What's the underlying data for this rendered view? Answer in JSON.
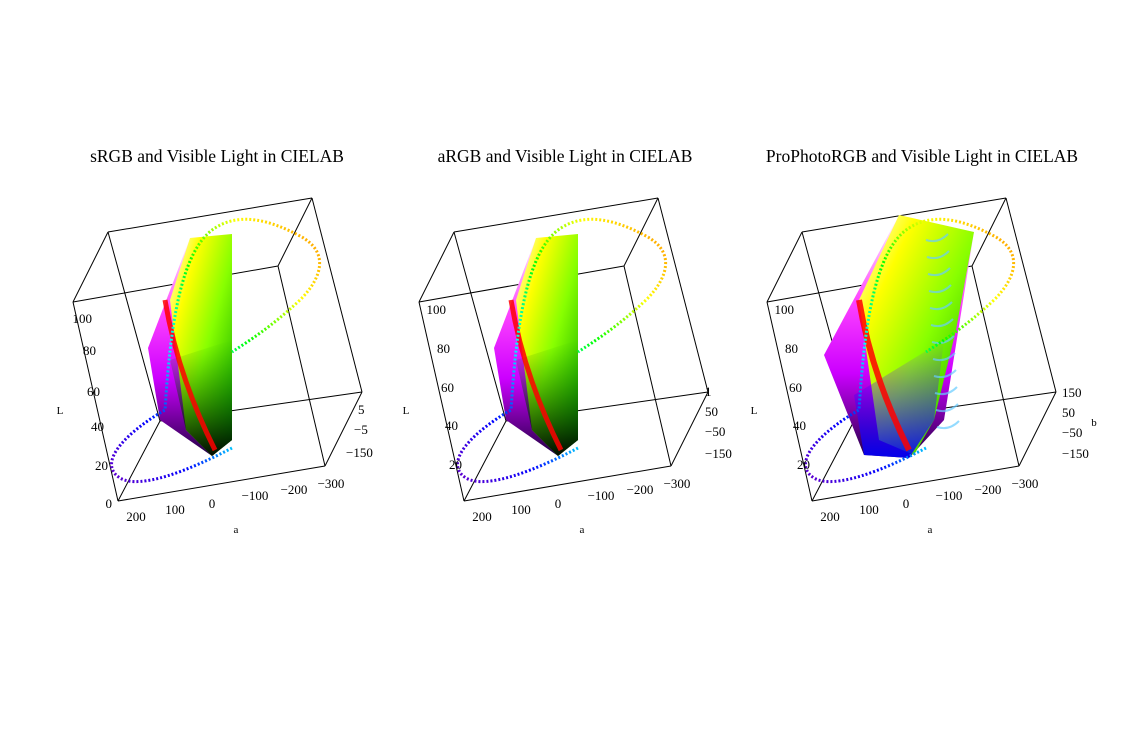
{
  "chart_data": [
    {
      "type": "scatter",
      "title": "sRGB and Visible Light in CIELAB",
      "xlabel": "a",
      "zlabel": "L",
      "z_ticks": [
        "0",
        "20",
        "40",
        "60",
        "80",
        "100"
      ],
      "a_ticks": [
        "200",
        "100",
        "0",
        "−100",
        "−200",
        "−300"
      ],
      "b_ticks": [
        "5",
        "−5",
        "−150"
      ],
      "zlim": [
        0,
        100
      ],
      "series": [
        {
          "kind": "gamut-solid",
          "colors": [
            "#ff00ff",
            "#ff0000",
            "#ffff00",
            "#00ff00",
            "#0000ff",
            "#000000"
          ]
        },
        {
          "kind": "spectral-locus",
          "colors": [
            "#6600cc",
            "#0000ff",
            "#00ffff",
            "#00ff00",
            "#ffff00",
            "#ff8800"
          ]
        }
      ]
    },
    {
      "type": "scatter",
      "title": "aRGB and Visible Light in CIELAB",
      "xlabel": "a",
      "zlabel": "L",
      "z_ticks": [
        "20",
        "40",
        "60",
        "80",
        "100"
      ],
      "a_ticks": [
        "200",
        "100",
        "0",
        "−100",
        "−200",
        "−300"
      ],
      "b_ticks": [
        "1",
        "50",
        "−50",
        "−150"
      ],
      "zlim": [
        0,
        100
      ],
      "series": [
        {
          "kind": "gamut-solid",
          "colors": [
            "#ff00ff",
            "#ff0000",
            "#ffff00",
            "#00ff00",
            "#0000ff",
            "#000000"
          ]
        },
        {
          "kind": "spectral-locus",
          "colors": [
            "#6600cc",
            "#0000ff",
            "#00ffff",
            "#00ff00",
            "#ffff00",
            "#ff8800"
          ]
        }
      ]
    },
    {
      "type": "scatter",
      "title": "ProPhotoRGB and Visible Light in CIELAB",
      "xlabel": "a",
      "ylabel": "b",
      "zlabel": "L",
      "z_ticks": [
        "20",
        "40",
        "60",
        "80",
        "100"
      ],
      "a_ticks": [
        "200",
        "100",
        "0",
        "−100",
        "−200",
        "−300"
      ],
      "b_ticks": [
        "150",
        "50",
        "−50",
        "−150"
      ],
      "zlim": [
        0,
        100
      ],
      "series": [
        {
          "kind": "gamut-solid",
          "colors": [
            "#ff00ff",
            "#ff0000",
            "#ffff00",
            "#00ff00",
            "#0000ff",
            "#000000"
          ]
        },
        {
          "kind": "spectral-locus",
          "colors": [
            "#6600cc",
            "#0000ff",
            "#00ffff",
            "#00ff00",
            "#ffff00",
            "#ff8800"
          ]
        }
      ]
    }
  ]
}
